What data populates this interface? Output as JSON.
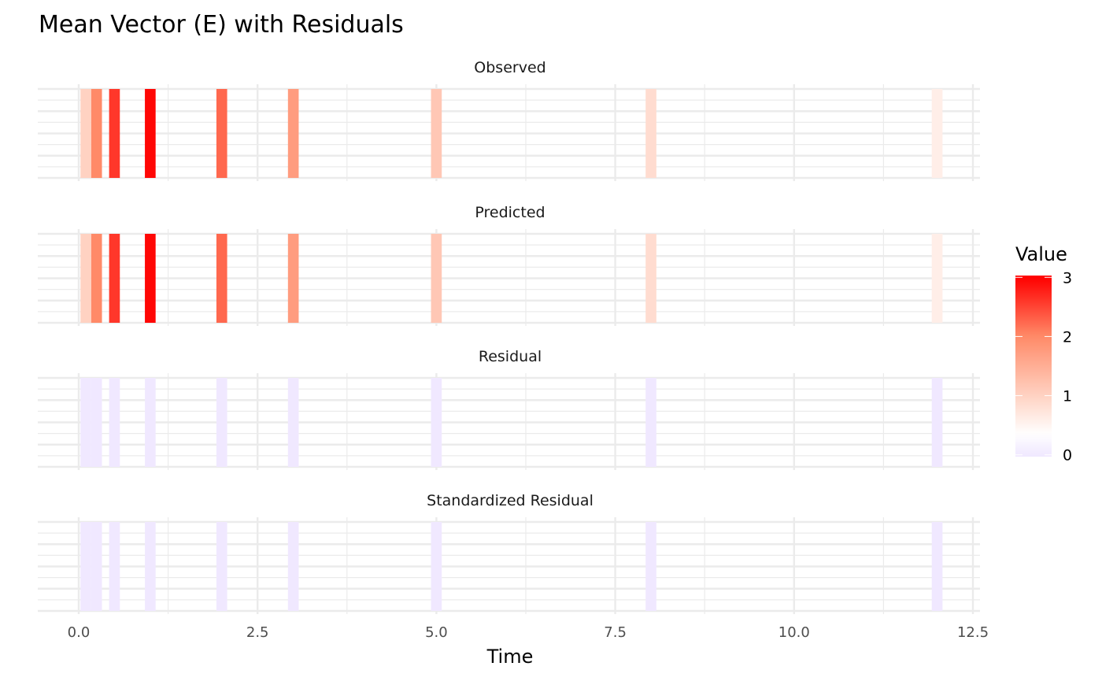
{
  "chart_data": {
    "type": "heatmap",
    "title": "Mean Vector (E) with Residuals",
    "xlabel": "Time",
    "ylabel": "",
    "xlim": [
      0,
      12.5
    ],
    "x_ticks": [
      "0.0",
      "2.5",
      "5.0",
      "7.5",
      "10.0",
      "12.5"
    ],
    "x_tick_values": [
      0,
      2.5,
      5,
      7.5,
      10,
      12.5
    ],
    "grid": true,
    "times": [
      0.1,
      0.25,
      0.5,
      1,
      2,
      3,
      5,
      8,
      12
    ],
    "facets": [
      {
        "name": "Observed",
        "values": [
          1.0,
          2.0,
          2.6,
          2.95,
          2.25,
          1.75,
          1.15,
          0.85,
          0.6
        ]
      },
      {
        "name": "Predicted",
        "values": [
          1.0,
          2.0,
          2.6,
          2.95,
          2.25,
          1.75,
          1.15,
          0.85,
          0.6
        ]
      },
      {
        "name": "Residual",
        "values": [
          0,
          0,
          0,
          0,
          0,
          0,
          0,
          0,
          0
        ]
      },
      {
        "name": "Standardized Residual",
        "values": [
          0,
          0,
          0,
          0,
          0,
          0,
          0,
          0,
          0
        ]
      }
    ],
    "legend": {
      "title": "Value",
      "position": "right",
      "ticks": [
        "0",
        "1",
        "2",
        "3"
      ],
      "tick_values": [
        0,
        1,
        2,
        3
      ],
      "range": [
        0,
        3
      ],
      "colors": {
        "low": "#f0e8ff",
        "mid": "#ffffff",
        "high": "#ff0000"
      }
    }
  }
}
